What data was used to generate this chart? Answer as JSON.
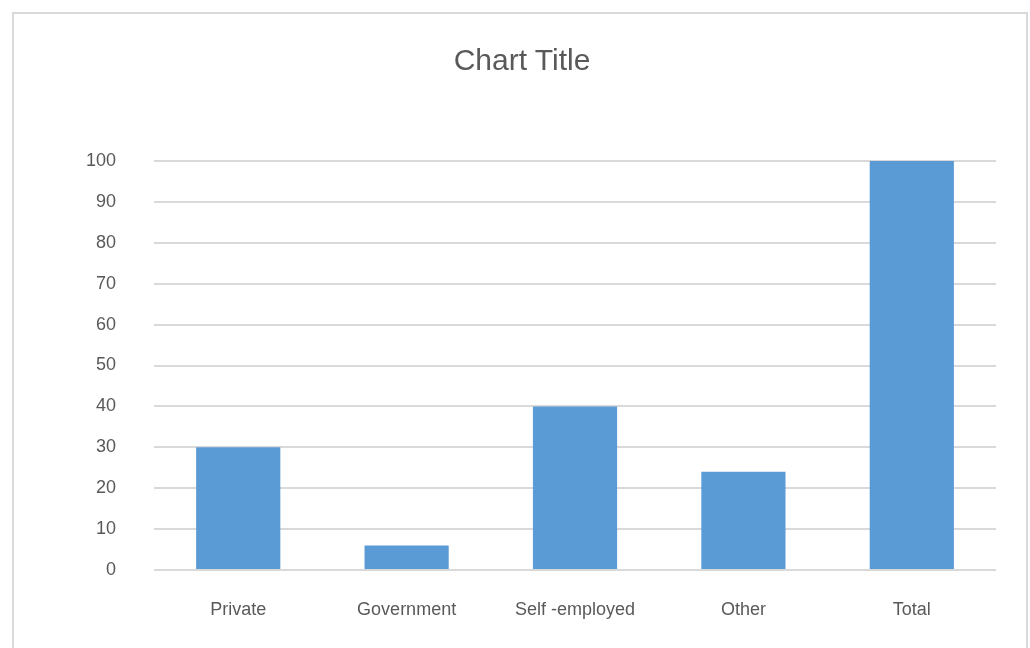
{
  "chart_data": {
    "type": "bar",
    "title": "Chart Title",
    "categories": [
      "Private",
      "Government",
      "Self -employed",
      "Other",
      "Total"
    ],
    "values": [
      30,
      6,
      40,
      24,
      100
    ],
    "color": "#5b9bd5",
    "ylim": [
      0,
      100
    ],
    "yticks": [
      0,
      10,
      20,
      30,
      40,
      50,
      60,
      70,
      80,
      90,
      100
    ],
    "grid": "y"
  }
}
